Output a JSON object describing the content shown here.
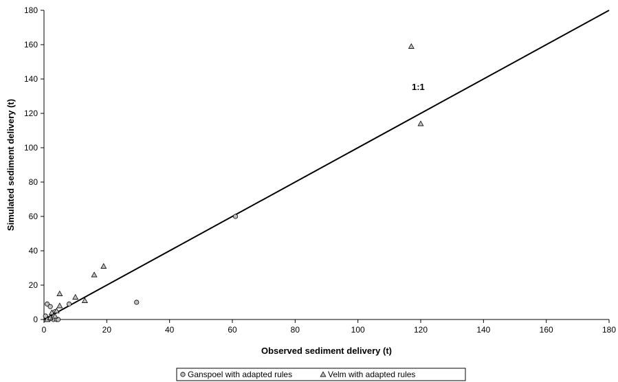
{
  "chart_data": {
    "type": "scatter",
    "xlabel": "Observed sediment delivery (t)",
    "ylabel": "Simulated sediment delivery (t)",
    "xlim": [
      0,
      180
    ],
    "ylim": [
      0,
      180
    ],
    "xticks": [
      0,
      20,
      40,
      60,
      80,
      100,
      120,
      140,
      160,
      180
    ],
    "yticks": [
      0,
      20,
      40,
      60,
      80,
      100,
      120,
      140,
      160,
      180
    ],
    "grid": false,
    "legend_position": "bottom",
    "reference_line": {
      "label": "1:1",
      "from": [
        0,
        0
      ],
      "to": [
        180,
        180
      ],
      "color": "#000000"
    },
    "series": [
      {
        "name": "Ganspoel with adapted rules",
        "marker": "circle",
        "color": "#c0c0c0",
        "x": [
          0.5,
          1,
          1.5,
          2,
          2.5,
          3,
          3.5,
          4,
          4.5,
          8,
          29.5,
          61
        ],
        "y": [
          2,
          9,
          0,
          7.5,
          1,
          0,
          4.5,
          0,
          0,
          9,
          10,
          60
        ]
      },
      {
        "name": "Velm with adapted rules",
        "marker": "triangle",
        "color": "#c0c0c0",
        "x": [
          1,
          2,
          2.5,
          3,
          3.5,
          4,
          5,
          5,
          10,
          13,
          16,
          19,
          117,
          120
        ],
        "y": [
          0,
          1,
          4,
          2,
          2,
          5,
          15,
          8,
          13,
          11,
          26,
          31,
          159,
          114
        ]
      }
    ]
  }
}
